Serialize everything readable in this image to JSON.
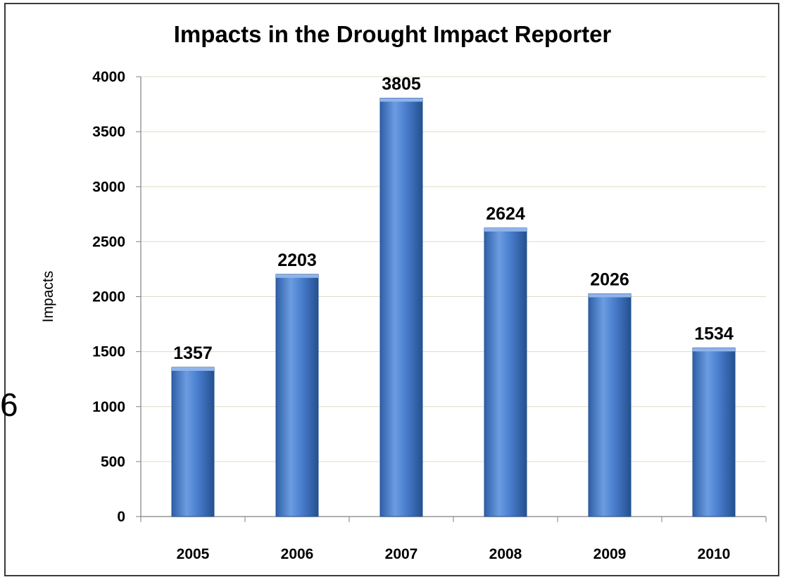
{
  "chart_data": {
    "type": "bar",
    "title": "Impacts in the Drought Impact Reporter",
    "xlabel": "",
    "ylabel": "Impacts",
    "categories": [
      "2005",
      "2006",
      "2007",
      "2008",
      "2009",
      "2010"
    ],
    "values": [
      1357,
      2203,
      3805,
      2624,
      2026,
      1534
    ],
    "data_labels": [
      "1357",
      "2203",
      "3805",
      "2624",
      "2026",
      "1534"
    ],
    "ylim": [
      0,
      4000
    ],
    "y_ticks": [
      0,
      500,
      1000,
      1500,
      2000,
      2500,
      3000,
      3500,
      4000
    ],
    "y_tick_labels": [
      "0",
      "500",
      "1000",
      "1500",
      "2000",
      "2500",
      "3000",
      "3500",
      "4000"
    ],
    "grid": true,
    "legend": "none",
    "colors": {
      "bar_light": "#6c9ce0",
      "bar_mid": "#3f73c2",
      "bar_dark": "#24508f",
      "bar_top": "#8fb4ea",
      "grid": "#e0dcc0",
      "axis": "#808080"
    }
  },
  "edge_fragment": "6"
}
